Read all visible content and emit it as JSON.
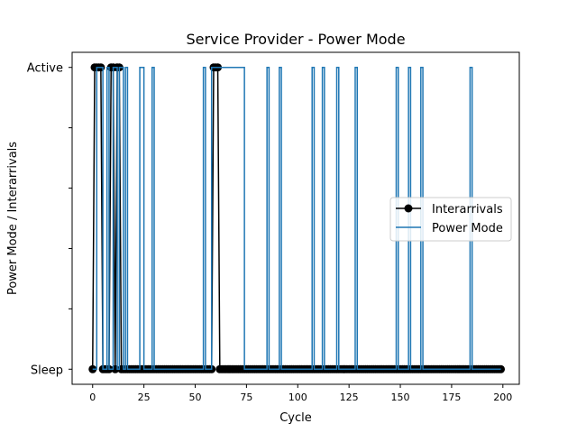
{
  "chart_data": {
    "type": "line",
    "title": "Service Provider - Power Mode",
    "xlabel": "Cycle",
    "ylabel": "Power Mode / Interarrivals",
    "xlim": [
      -10,
      208
    ],
    "ylim": [
      -0.05,
      1.05
    ],
    "xticks": [
      0,
      25,
      50,
      75,
      100,
      125,
      150,
      175,
      200
    ],
    "yticks": [
      {
        "value": 0,
        "label": "Sleep"
      },
      {
        "value": 0.2,
        "label": ""
      },
      {
        "value": 0.4,
        "label": ""
      },
      {
        "value": 0.6,
        "label": ""
      },
      {
        "value": 0.8,
        "label": ""
      },
      {
        "value": 1,
        "label": "Active"
      }
    ],
    "grid": false,
    "legend_position": "center-right",
    "series": [
      {
        "name": "Interarrivals",
        "color": "#000000",
        "marker": "circle",
        "step": false,
        "x": [
          0,
          1,
          2,
          3,
          4,
          5,
          6,
          7,
          8,
          9,
          10,
          11,
          12,
          13,
          14,
          15,
          16,
          17,
          18,
          19,
          20,
          21,
          22,
          23,
          24,
          25,
          26,
          27,
          28,
          29,
          30,
          31,
          32,
          33,
          34,
          35,
          36,
          37,
          38,
          39,
          40,
          41,
          42,
          43,
          44,
          45,
          46,
          47,
          48,
          49,
          50,
          51,
          52,
          53,
          54,
          55,
          56,
          57,
          58,
          59,
          60,
          61,
          62,
          63,
          64,
          65,
          66,
          67,
          68,
          69,
          70,
          71,
          72,
          73,
          74,
          75,
          76,
          77,
          78,
          79,
          80,
          81,
          82,
          83,
          84,
          85,
          86,
          87,
          88,
          89,
          90,
          91,
          92,
          93,
          94,
          95,
          96,
          97,
          98,
          99,
          100,
          101,
          102,
          103,
          104,
          105,
          106,
          107,
          108,
          109,
          110,
          111,
          112,
          113,
          114,
          115,
          116,
          117,
          118,
          119,
          120,
          121,
          122,
          123,
          124,
          125,
          126,
          127,
          128,
          129,
          130,
          131,
          132,
          133,
          134,
          135,
          136,
          137,
          138,
          139,
          140,
          141,
          142,
          143,
          144,
          145,
          146,
          147,
          148,
          149,
          150,
          151,
          152,
          153,
          154,
          155,
          156,
          157,
          158,
          159,
          160,
          161,
          162,
          163,
          164,
          165,
          166,
          167,
          168,
          169,
          170,
          171,
          172,
          173,
          174,
          175,
          176,
          177,
          178,
          179,
          180,
          181,
          182,
          183,
          184,
          185,
          186,
          187,
          188,
          189,
          190,
          191,
          192,
          193,
          194,
          195,
          196,
          197,
          198,
          199
        ],
        "y": [
          0,
          1,
          1,
          1,
          1,
          0,
          0,
          0,
          0,
          1,
          1,
          0,
          1,
          1,
          0,
          0,
          0,
          0,
          0,
          0,
          0,
          0,
          0,
          0,
          0,
          0,
          0,
          0,
          0,
          0,
          0,
          0,
          0,
          0,
          0,
          0,
          0,
          0,
          0,
          0,
          0,
          0,
          0,
          0,
          0,
          0,
          0,
          0,
          0,
          0,
          0,
          0,
          0,
          0,
          0,
          0,
          0,
          0,
          0,
          1,
          1,
          1,
          0,
          0,
          0,
          0,
          0,
          0,
          0,
          0,
          0,
          0,
          0,
          0,
          0,
          0,
          0,
          0,
          0,
          0,
          0,
          0,
          0,
          0,
          0,
          0,
          0,
          0,
          0,
          0,
          0,
          0,
          0,
          0,
          0,
          0,
          0,
          0,
          0,
          0,
          0,
          0,
          0,
          0,
          0,
          0,
          0,
          0,
          0,
          0,
          0,
          0,
          0,
          0,
          0,
          0,
          0,
          0,
          0,
          0,
          0,
          0,
          0,
          0,
          0,
          0,
          0,
          0,
          0,
          0,
          0,
          0,
          0,
          0,
          0,
          0,
          0,
          0,
          0,
          0,
          0,
          0,
          0,
          0,
          0,
          0,
          0,
          0,
          0,
          0,
          0,
          0,
          0,
          0,
          0,
          0,
          0,
          0,
          0,
          0,
          0,
          0,
          0,
          0,
          0,
          0,
          0,
          0,
          0,
          0,
          0,
          0,
          0,
          0,
          0,
          0,
          0,
          0,
          0,
          0,
          0,
          0,
          0,
          0,
          0,
          0,
          0,
          0,
          0,
          0,
          0,
          0,
          0,
          0,
          0,
          0,
          0,
          0,
          0,
          0
        ]
      },
      {
        "name": "Power Mode",
        "color": "#1f77b4",
        "marker": "none",
        "step": true,
        "x": [
          0,
          1,
          2,
          3,
          4,
          5,
          6,
          7,
          8,
          9,
          10,
          11,
          12,
          13,
          14,
          15,
          16,
          17,
          18,
          19,
          20,
          21,
          22,
          23,
          24,
          25,
          26,
          27,
          28,
          29,
          30,
          31,
          32,
          33,
          34,
          35,
          36,
          37,
          38,
          39,
          40,
          41,
          42,
          43,
          44,
          45,
          46,
          47,
          48,
          49,
          50,
          51,
          52,
          53,
          54,
          55,
          56,
          57,
          58,
          59,
          60,
          61,
          62,
          63,
          64,
          65,
          66,
          67,
          68,
          69,
          70,
          71,
          72,
          73,
          74,
          75,
          76,
          77,
          78,
          79,
          80,
          81,
          82,
          83,
          84,
          85,
          86,
          87,
          88,
          89,
          90,
          91,
          92,
          93,
          94,
          95,
          96,
          97,
          98,
          99,
          100,
          101,
          102,
          103,
          104,
          105,
          106,
          107,
          108,
          109,
          110,
          111,
          112,
          113,
          114,
          115,
          116,
          117,
          118,
          119,
          120,
          121,
          122,
          123,
          124,
          125,
          126,
          127,
          128,
          129,
          130,
          131,
          132,
          133,
          134,
          135,
          136,
          137,
          138,
          139,
          140,
          141,
          142,
          143,
          144,
          145,
          146,
          147,
          148,
          149,
          150,
          151,
          152,
          153,
          154,
          155,
          156,
          157,
          158,
          159,
          160,
          161,
          162,
          163,
          164,
          165,
          166,
          167,
          168,
          169,
          170,
          171,
          172,
          173,
          174,
          175,
          176,
          177,
          178,
          179,
          180,
          181,
          182,
          183,
          184,
          185,
          186,
          187,
          188,
          189,
          190,
          191,
          192,
          193,
          194,
          195,
          196,
          197,
          198,
          199
        ],
        "y": [
          0,
          0,
          1,
          1,
          1,
          0,
          0,
          1,
          0,
          0,
          1,
          1,
          0,
          1,
          1,
          0,
          1,
          0,
          0,
          0,
          0,
          0,
          0,
          1,
          1,
          0,
          0,
          0,
          0,
          1,
          0,
          0,
          0,
          0,
          0,
          0,
          0,
          0,
          0,
          0,
          0,
          0,
          0,
          0,
          0,
          0,
          0,
          0,
          0,
          0,
          0,
          0,
          0,
          0,
          1,
          0,
          0,
          0,
          1,
          1,
          1,
          1,
          1,
          1,
          1,
          1,
          1,
          1,
          1,
          1,
          1,
          1,
          1,
          1,
          0,
          0,
          0,
          0,
          0,
          0,
          0,
          0,
          0,
          0,
          0,
          1,
          0,
          0,
          0,
          0,
          0,
          1,
          0,
          0,
          0,
          0,
          0,
          0,
          0,
          0,
          0,
          0,
          0,
          0,
          0,
          0,
          0,
          1,
          0,
          0,
          0,
          0,
          1,
          0,
          0,
          0,
          0,
          0,
          0,
          1,
          0,
          0,
          0,
          0,
          0,
          0,
          0,
          0,
          1,
          0,
          0,
          0,
          0,
          0,
          0,
          0,
          0,
          0,
          0,
          0,
          0,
          0,
          0,
          0,
          0,
          0,
          0,
          0,
          1,
          0,
          0,
          0,
          0,
          0,
          1,
          0,
          0,
          0,
          0,
          0,
          1,
          0,
          0,
          0,
          0,
          0,
          0,
          0,
          0,
          0,
          0,
          0,
          0,
          0,
          0,
          0,
          0,
          0,
          0,
          0,
          0,
          0,
          0,
          0,
          1,
          0,
          0,
          0,
          0,
          0,
          0,
          0,
          0,
          0,
          0,
          0,
          0,
          0,
          0,
          0
        ]
      }
    ]
  }
}
